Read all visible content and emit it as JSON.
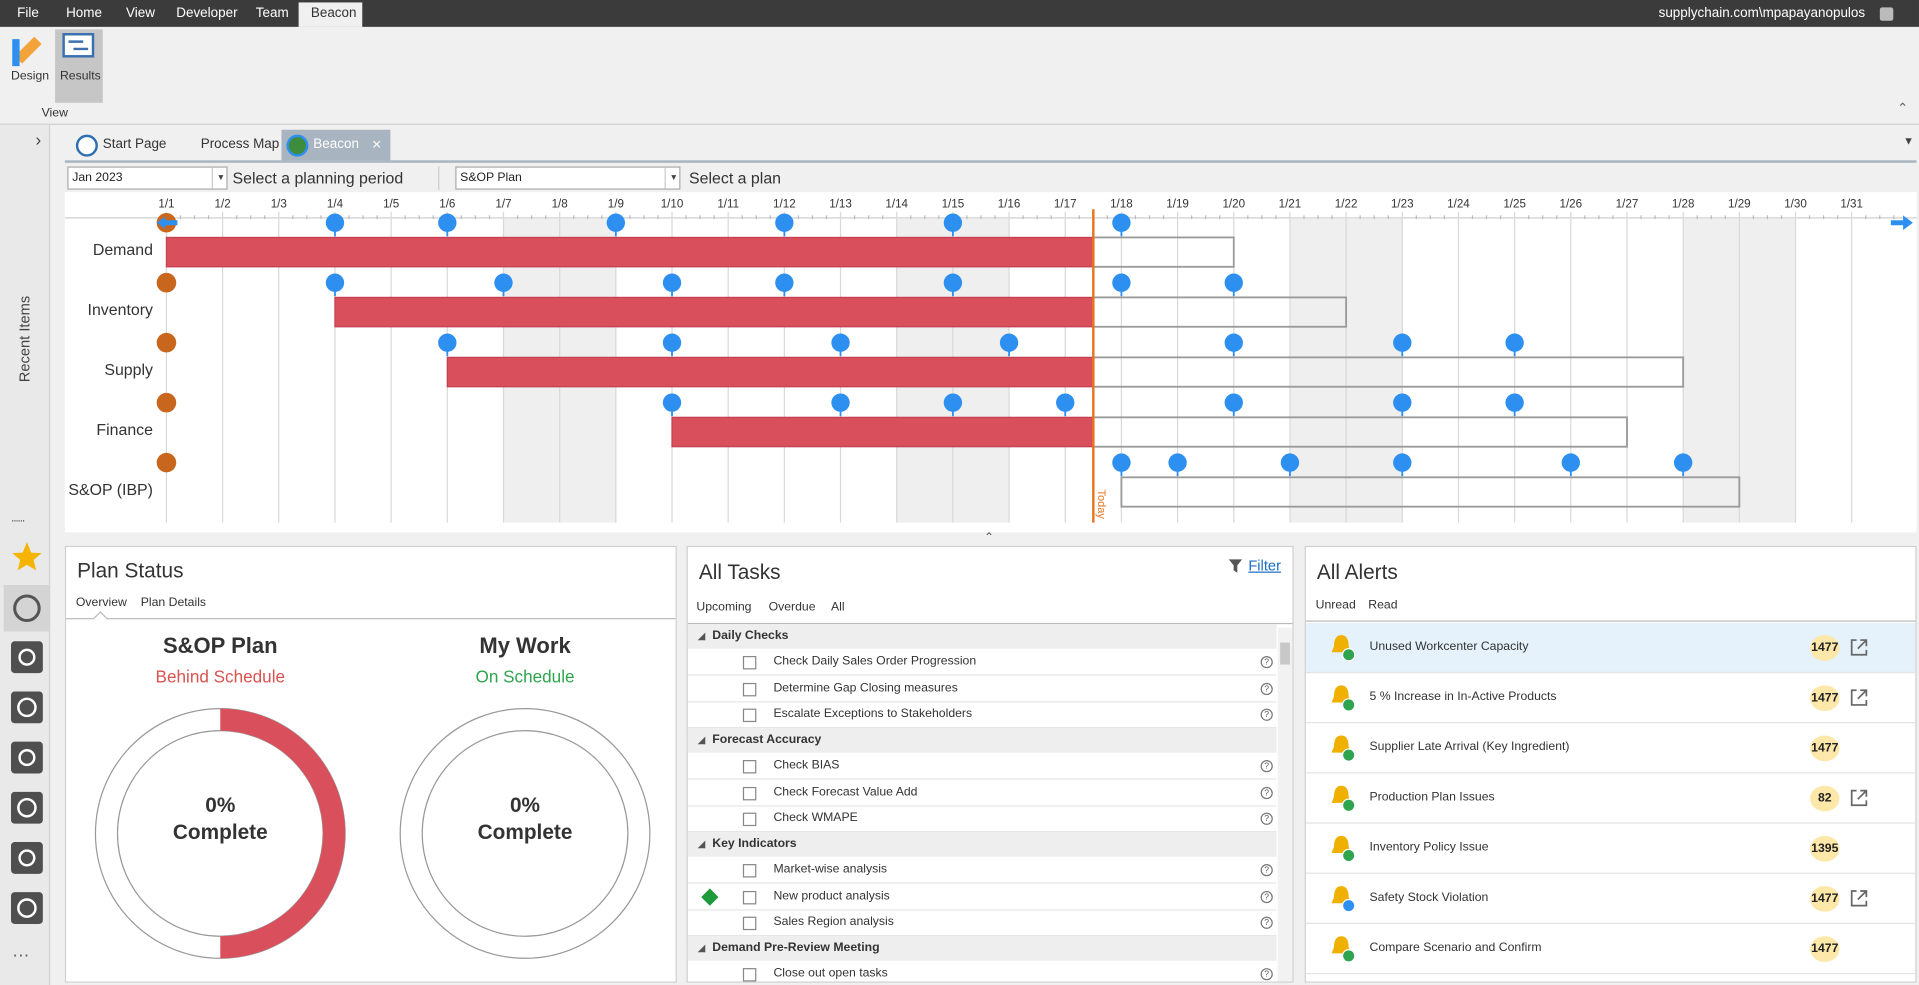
{
  "menu": [
    "File",
    "Home",
    "View",
    "Developer",
    "Team",
    "Beacon"
  ],
  "user": "supplychain.com\\mpapayanopulos",
  "ribbon": {
    "buttons": [
      "Design",
      "Results"
    ],
    "group": "View"
  },
  "sidebar": {
    "label": "Recent Items"
  },
  "tabs": [
    "Start Page",
    "Process Map",
    "Beacon"
  ],
  "selectors": [
    {
      "value": "Jan 2023",
      "hint": "Select a planning period"
    },
    {
      "value": "S&OP Plan",
      "hint": "Select a plan"
    }
  ],
  "gantt": {
    "days": [
      "1/1",
      "1/2",
      "1/3",
      "1/4",
      "1/5",
      "1/6",
      "1/7",
      "1/8",
      "1/9",
      "1/10",
      "1/11",
      "1/12",
      "1/13",
      "1/14",
      "1/15",
      "1/16",
      "1/17",
      "1/18",
      "1/19",
      "1/20",
      "1/21",
      "1/22",
      "1/23",
      "1/24",
      "1/25",
      "1/26",
      "1/27",
      "1/28",
      "1/29",
      "1/30",
      "1/31"
    ],
    "today": 17.5,
    "today_label": "Today",
    "rows": [
      {
        "label": "Demand",
        "start": 1,
        "end": 20,
        "milestones": [
          4,
          6,
          9,
          12,
          15,
          18
        ]
      },
      {
        "label": "Inventory",
        "start": 4,
        "end": 22,
        "milestones": [
          4,
          7,
          10,
          12,
          15,
          18,
          20
        ]
      },
      {
        "label": "Supply",
        "start": 6,
        "end": 28,
        "milestones": [
          6,
          10,
          13,
          16,
          20,
          23,
          25
        ]
      },
      {
        "label": "Finance",
        "start": 10,
        "end": 27,
        "milestones": [
          10,
          13,
          15,
          17,
          20,
          23,
          25
        ]
      },
      {
        "label": "S&OP (IBP)",
        "start": 18,
        "end": 29,
        "milestones": [
          18,
          19,
          21,
          23,
          26,
          28
        ]
      }
    ]
  },
  "plan_status": {
    "title": "Plan Status",
    "tabs": [
      "Overview",
      "Plan Details"
    ],
    "cards": [
      {
        "title": "S&OP Plan",
        "status": "Behind Schedule",
        "status_color": "#d9534f",
        "percent": "0%",
        "caption": "Complete"
      },
      {
        "title": "My Work",
        "status": "On Schedule",
        "status_color": "#2ea44f",
        "percent": "0%",
        "caption": "Complete"
      }
    ]
  },
  "tasks": {
    "title": "All Tasks",
    "filter": "Filter",
    "tabs": [
      "Upcoming",
      "Overdue",
      "All"
    ],
    "groups": [
      {
        "name": "Daily Checks",
        "items": [
          {
            "text": "Check Daily Sales Order Progression"
          },
          {
            "text": "Determine Gap Closing measures"
          },
          {
            "text": "Escalate Exceptions to Stakeholders"
          }
        ]
      },
      {
        "name": "Forecast Accuracy",
        "items": [
          {
            "text": "Check BIAS"
          },
          {
            "text": "Check Forecast Value Add"
          },
          {
            "text": "Check WMAPE"
          }
        ]
      },
      {
        "name": "Key Indicators",
        "items": [
          {
            "text": "Market-wise analysis"
          },
          {
            "text": "New product analysis",
            "flagged": true
          },
          {
            "text": "Sales Region analysis"
          }
        ]
      },
      {
        "name": "Demand Pre-Review Meeting",
        "items": [
          {
            "text": "Close out open tasks"
          }
        ]
      }
    ]
  },
  "alerts": {
    "title": "All Alerts",
    "tabs": [
      "Unread",
      "Read"
    ],
    "items": [
      {
        "title": "Unused Workcenter Capacity",
        "count": 1477,
        "link": true,
        "badge_color": "#2ea44f"
      },
      {
        "title": "5 % Increase in In-Active Products",
        "count": 1477,
        "link": true,
        "badge_color": "#2ea44f"
      },
      {
        "title": "Supplier Late Arrival (Key Ingredient)",
        "count": 1477,
        "link": false,
        "badge_color": "#2ea44f"
      },
      {
        "title": "Production Plan Issues",
        "count": 82,
        "link": true,
        "badge_color": "#2ea44f"
      },
      {
        "title": "Inventory Policy Issue",
        "count": 1395,
        "link": false,
        "badge_color": "#2ea44f"
      },
      {
        "title": "Safety Stock Violation",
        "count": 1477,
        "link": true,
        "badge_color": "#2d8ff0"
      },
      {
        "title": "Compare Scenario and Confirm",
        "count": 1477,
        "link": false,
        "badge_color": "#2ea44f"
      }
    ]
  }
}
